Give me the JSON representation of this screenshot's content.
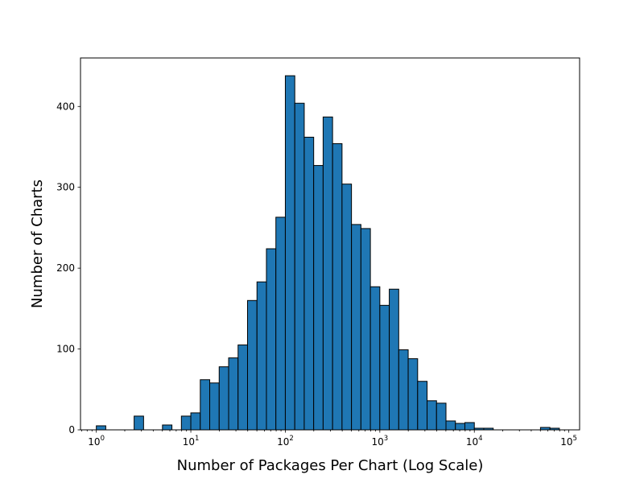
{
  "chart_data": {
    "type": "bar",
    "title": "",
    "xlabel": "Number of Packages Per Chart (Log Scale)",
    "ylabel": "Number of Charts",
    "xscale": "log",
    "xlim": [
      0.68,
      130000
    ],
    "ylim": [
      0,
      460
    ],
    "grid": false,
    "bar_color": "#1f77b4",
    "edge_color": "#000000",
    "x_ticks": [
      {
        "value": 1,
        "base": "10",
        "exp": "0"
      },
      {
        "value": 10,
        "base": "10",
        "exp": "1"
      },
      {
        "value": 100,
        "base": "10",
        "exp": "2"
      },
      {
        "value": 1000,
        "base": "10",
        "exp": "3"
      },
      {
        "value": 10000,
        "base": "10",
        "exp": "4"
      },
      {
        "value": 100000,
        "base": "10",
        "exp": "5"
      }
    ],
    "y_ticks": [
      0,
      100,
      200,
      300,
      400
    ],
    "bins": {
      "log_start": 0.0,
      "log_width": 0.1,
      "counts": [
        5,
        0,
        0,
        0,
        17,
        0,
        0,
        6,
        0,
        17,
        21,
        62,
        58,
        78,
        89,
        105,
        160,
        183,
        224,
        263,
        438,
        404,
        362,
        327,
        387,
        354,
        304,
        254,
        249,
        177,
        154,
        174,
        99,
        88,
        60,
        36,
        33,
        11,
        8,
        9,
        2,
        2,
        0,
        0,
        0,
        0,
        0,
        3,
        2
      ]
    }
  }
}
